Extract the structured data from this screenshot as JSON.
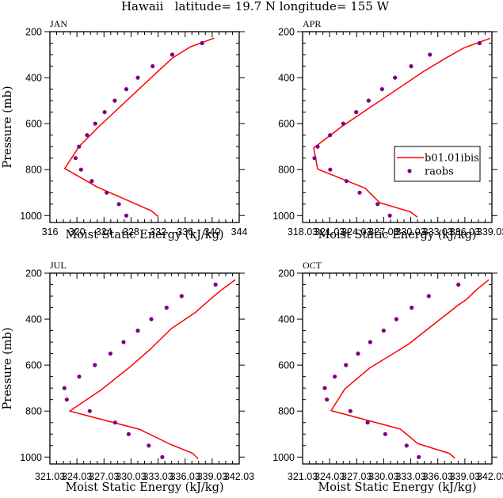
{
  "figure": {
    "title": "Hawaii   latitude= 19.7 N longitude= 155 W"
  },
  "colors": {
    "model_line": "#ff0000",
    "raobs_marker": "#800080",
    "axis": "#000000",
    "background": "#ffffff"
  },
  "legend": {
    "panel": "APR",
    "placement": "center-right",
    "entries": [
      {
        "label": "b01.01ibis",
        "kind": "line"
      },
      {
        "label": "raobs",
        "kind": "marker"
      }
    ]
  },
  "chart_data": [
    {
      "type": "line",
      "panel": "JAN",
      "title": "JAN",
      "xlabel": "Moist Static Energy (kJ/kg)",
      "ylabel": "Pressure (mb)",
      "xlim": [
        316,
        344
      ],
      "ylim": [
        1030,
        200
      ],
      "y_inverted": true,
      "xticks": [
        316,
        320,
        324,
        328,
        332,
        336,
        340,
        344
      ],
      "xtick_labels": [
        "316",
        "320",
        "324",
        "328",
        "332",
        "336",
        "340",
        "344"
      ],
      "x_minor_per_major": 3,
      "yticks": [
        200,
        400,
        600,
        800,
        1000
      ],
      "ytick_labels": [
        "200",
        "400",
        "600",
        "800",
        "1000"
      ],
      "y_minor_step": 50,
      "series": [
        {
          "name": "b01.01ibis",
          "kind": "line",
          "points": [
            [
              340.3,
              228
            ],
            [
              336.7,
              267
            ],
            [
              334.1,
              315
            ],
            [
              332.0,
              372
            ],
            [
              323.2,
              614
            ],
            [
              320.3,
              700
            ],
            [
              318.2,
              795
            ],
            [
              323.0,
              876
            ],
            [
              331.0,
              979
            ],
            [
              332.0,
              1004
            ]
          ]
        },
        {
          "name": "raobs",
          "kind": "scatter",
          "points": [
            [
              338.5,
              250
            ],
            [
              334.1,
              300
            ],
            [
              331.2,
              350
            ],
            [
              329.0,
              400
            ],
            [
              327.3,
              450
            ],
            [
              325.6,
              500
            ],
            [
              324.1,
              550
            ],
            [
              322.7,
              600
            ],
            [
              321.5,
              650
            ],
            [
              320.3,
              700
            ],
            [
              319.8,
              750
            ],
            [
              320.6,
              800
            ],
            [
              322.2,
              850
            ],
            [
              324.4,
              900
            ],
            [
              326.2,
              950
            ],
            [
              327.3,
              1000
            ]
          ]
        }
      ]
    },
    {
      "type": "line",
      "panel": "APR",
      "title": "APR",
      "xlabel": "Moist Static Energy (kJ/kg)",
      "ylabel": "",
      "xlim": [
        318.03,
        339.03
      ],
      "ylim": [
        1030,
        200
      ],
      "y_inverted": true,
      "xticks": [
        318.03,
        321.03,
        324.03,
        327.03,
        330.03,
        333.03,
        336.03,
        339.03
      ],
      "xtick_labels": [
        "318.03",
        "321.03",
        "324.03",
        "327.03",
        "330.03",
        "333.03",
        "336.03",
        "339.03"
      ],
      "x_minor_per_major": 3,
      "yticks": [
        200,
        400,
        600,
        800,
        1000
      ],
      "ytick_labels": [
        "200",
        "400",
        "600",
        "800",
        "1000"
      ],
      "y_minor_step": 50,
      "series": [
        {
          "name": "b01.01ibis",
          "kind": "line",
          "points": [
            [
              338.83,
              229
            ],
            [
              335.9,
              271
            ],
            [
              334.0,
              313
            ],
            [
              331.5,
              372
            ],
            [
              322.4,
              612
            ],
            [
              319.26,
              706
            ],
            [
              319.7,
              798
            ],
            [
              324.97,
              881
            ],
            [
              326.58,
              944
            ],
            [
              330.0,
              984
            ],
            [
              330.77,
              1007
            ]
          ]
        },
        {
          "name": "raobs",
          "kind": "scatter",
          "points": [
            [
              337.65,
              250
            ],
            [
              332.15,
              300
            ],
            [
              330.07,
              350
            ],
            [
              328.28,
              400
            ],
            [
              326.84,
              450
            ],
            [
              325.35,
              500
            ],
            [
              323.98,
              550
            ],
            [
              322.54,
              600
            ],
            [
              321.08,
              650
            ],
            [
              319.7,
              700
            ],
            [
              319.35,
              750
            ],
            [
              321.1,
              800
            ],
            [
              322.9,
              850
            ],
            [
              324.36,
              900
            ],
            [
              326.35,
              950
            ],
            [
              327.7,
              1000
            ]
          ]
        }
      ]
    },
    {
      "type": "line",
      "panel": "JUL",
      "title": "JUL",
      "xlabel": "Moist Static Energy (kJ/kg)",
      "ylabel": "Pressure (mb)",
      "xlim": [
        321.03,
        342.03
      ],
      "ylim": [
        1030,
        200
      ],
      "y_inverted": true,
      "xticks": [
        321.03,
        324.03,
        327.03,
        330.03,
        333.03,
        336.03,
        339.03,
        342.03
      ],
      "xtick_labels": [
        "321.03",
        "324.03",
        "327.03",
        "330.03",
        "333.03",
        "336.03",
        "339.03",
        "342.03"
      ],
      "x_minor_per_major": 3,
      "yticks": [
        200,
        400,
        600,
        800,
        1000
      ],
      "ytick_labels": [
        "200",
        "400",
        "600",
        "800",
        "1000"
      ],
      "y_minor_step": 50,
      "series": [
        {
          "name": "b01.01ibis",
          "kind": "line",
          "points": [
            [
              341.59,
              229
            ],
            [
              340.13,
              271
            ],
            [
              339.19,
              301
            ],
            [
              337.14,
              372
            ],
            [
              334.5,
              441
            ],
            [
              332.16,
              531
            ],
            [
              329.76,
              613
            ],
            [
              326.6,
              711
            ],
            [
              323.23,
              800
            ],
            [
              331.0,
              880
            ],
            [
              334.36,
              944
            ],
            [
              336.85,
              983
            ],
            [
              337.49,
              1008
            ]
          ]
        },
        {
          "name": "raobs",
          "kind": "scatter",
          "points": [
            [
              339.4,
              250
            ],
            [
              335.64,
              300
            ],
            [
              333.97,
              350
            ],
            [
              332.28,
              400
            ],
            [
              330.78,
              450
            ],
            [
              329.2,
              500
            ],
            [
              327.74,
              550
            ],
            [
              326.01,
              600
            ],
            [
              324.28,
              650
            ],
            [
              322.64,
              700
            ],
            [
              322.9,
              750
            ],
            [
              325.45,
              800
            ],
            [
              328.26,
              850
            ],
            [
              329.76,
              900
            ],
            [
              332.0,
              950
            ],
            [
              333.5,
              1000
            ]
          ]
        }
      ]
    },
    {
      "type": "line",
      "panel": "OCT",
      "title": "OCT",
      "xlabel": "Moist Static Energy (kJ/kg)",
      "ylabel": "",
      "xlim": [
        321.03,
        342.03
      ],
      "ylim": [
        1030,
        200
      ],
      "y_inverted": true,
      "xticks": [
        321.03,
        324.03,
        327.03,
        330.03,
        333.03,
        336.03,
        339.03,
        342.03
      ],
      "xtick_labels": [
        "321.03",
        "324.03",
        "327.03",
        "330.03",
        "333.03",
        "336.03",
        "339.03",
        "342.03"
      ],
      "x_minor_per_major": 3,
      "yticks": [
        200,
        400,
        600,
        800,
        1000
      ],
      "ytick_labels": [
        "200",
        "400",
        "600",
        "800",
        "1000"
      ],
      "y_minor_step": 50,
      "series": [
        {
          "name": "b01.01ibis",
          "kind": "line",
          "points": [
            [
              341.68,
              229
            ],
            [
              340.36,
              271
            ],
            [
              339.19,
              315
            ],
            [
              338.31,
              338
            ],
            [
              332.74,
              510
            ],
            [
              332.16,
              524
            ],
            [
              328.5,
              612
            ],
            [
              325.71,
              704
            ],
            [
              324.19,
              798
            ],
            [
              331.86,
              878
            ],
            [
              333.83,
              942
            ],
            [
              337.29,
              984
            ],
            [
              337.93,
              1005
            ]
          ]
        },
        {
          "name": "raobs",
          "kind": "scatter",
          "points": [
            [
              338.31,
              250
            ],
            [
              335.03,
              300
            ],
            [
              333.13,
              350
            ],
            [
              331.43,
              400
            ],
            [
              330.02,
              450
            ],
            [
              328.53,
              500
            ],
            [
              327.18,
              550
            ],
            [
              325.84,
              600
            ],
            [
              324.6,
              650
            ],
            [
              323.49,
              700
            ],
            [
              323.73,
              750
            ],
            [
              326.33,
              800
            ],
            [
              328.24,
              850
            ],
            [
              330.2,
              900
            ],
            [
              332.57,
              950
            ],
            [
              333.92,
              1000
            ]
          ]
        }
      ]
    }
  ]
}
